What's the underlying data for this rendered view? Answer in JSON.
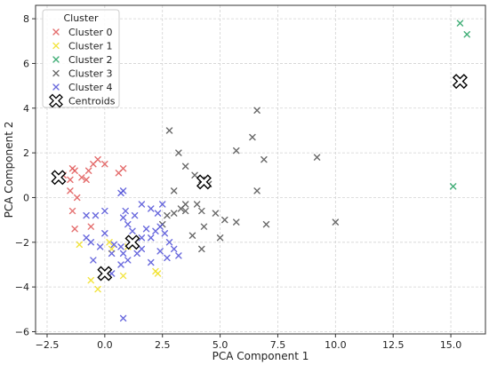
{
  "chart_data": {
    "type": "scatter",
    "xlabel": "PCA Component 1",
    "ylabel": "PCA Component 2",
    "xlim": [
      -3.0,
      16.5
    ],
    "ylim": [
      -6.1,
      8.6
    ],
    "x_ticks": [
      -2.5,
      0.0,
      2.5,
      5.0,
      7.5,
      10.0,
      12.5,
      15.0
    ],
    "x_tick_labels": [
      "−2.5",
      "0.0",
      "2.5",
      "5.0",
      "7.5",
      "10.0",
      "12.5",
      "15.0"
    ],
    "y_ticks": [
      -6,
      -4,
      -2,
      0,
      2,
      4,
      6,
      8
    ],
    "y_tick_labels": [
      "−6",
      "−4",
      "−2",
      "0",
      "2",
      "4",
      "6",
      "8"
    ],
    "grid": true,
    "legend": {
      "title": "Cluster",
      "placement": "top-left",
      "entries": [
        "Cluster 0",
        "Cluster 1",
        "Cluster 2",
        "Cluster 3",
        "Cluster 4",
        "Centroids"
      ]
    },
    "series": [
      {
        "name": "Cluster 0",
        "color": "#e05555",
        "marker": "x",
        "points": [
          [
            -2.0,
            0.8
          ],
          [
            -1.8,
            1.0
          ],
          [
            -1.5,
            0.8
          ],
          [
            -1.4,
            1.3
          ],
          [
            -1.3,
            1.2
          ],
          [
            -1.0,
            0.9
          ],
          [
            -0.7,
            1.2
          ],
          [
            -0.5,
            1.5
          ],
          [
            -0.3,
            1.7
          ],
          [
            0.0,
            1.5
          ],
          [
            0.6,
            1.1
          ],
          [
            0.8,
            1.3
          ],
          [
            -0.8,
            0.8
          ],
          [
            -1.2,
            0.0
          ],
          [
            -1.4,
            -0.6
          ],
          [
            -1.3,
            -1.4
          ],
          [
            -0.6,
            -1.3
          ],
          [
            -1.5,
            0.3
          ]
        ]
      },
      {
        "name": "Cluster 1",
        "color": "#f0e020",
        "marker": "x",
        "points": [
          [
            -1.1,
            -2.1
          ],
          [
            -0.6,
            -3.7
          ],
          [
            -0.3,
            -4.1
          ],
          [
            0.2,
            -2.0
          ],
          [
            0.8,
            -3.5
          ],
          [
            2.2,
            -3.3
          ],
          [
            2.3,
            -3.4
          ],
          [
            0.3,
            -2.3
          ],
          [
            1.0,
            -2.2
          ]
        ]
      },
      {
        "name": "Cluster 2",
        "color": "#20a060",
        "marker": "x",
        "points": [
          [
            15.4,
            7.8
          ],
          [
            15.7,
            7.3
          ],
          [
            15.1,
            0.5
          ]
        ]
      },
      {
        "name": "Cluster 3",
        "color": "#505050",
        "marker": "x",
        "points": [
          [
            2.8,
            3.0
          ],
          [
            3.5,
            1.4
          ],
          [
            3.2,
            2.0
          ],
          [
            3.9,
            1.0
          ],
          [
            4.2,
            0.8
          ],
          [
            4.5,
            0.6
          ],
          [
            4.0,
            -0.3
          ],
          [
            4.2,
            -0.6
          ],
          [
            4.3,
            -1.3
          ],
          [
            4.2,
            -2.3
          ],
          [
            4.8,
            -0.7
          ],
          [
            5.0,
            -1.8
          ],
          [
            5.2,
            -1.0
          ],
          [
            5.7,
            -1.1
          ],
          [
            5.7,
            2.1
          ],
          [
            6.4,
            2.7
          ],
          [
            6.6,
            3.9
          ],
          [
            6.6,
            0.3
          ],
          [
            6.9,
            1.7
          ],
          [
            7.0,
            -1.2
          ],
          [
            9.2,
            1.8
          ],
          [
            10.0,
            -1.1
          ],
          [
            3.0,
            0.3
          ],
          [
            3.3,
            -0.5
          ],
          [
            3.5,
            -0.3
          ],
          [
            2.7,
            -0.8
          ],
          [
            2.5,
            -1.2
          ],
          [
            3.8,
            -1.7
          ],
          [
            3.0,
            -0.7
          ],
          [
            3.5,
            -0.6
          ]
        ]
      },
      {
        "name": "Cluster 4",
        "color": "#5050d8",
        "marker": "x",
        "points": [
          [
            -0.8,
            -0.8
          ],
          [
            -0.4,
            -0.8
          ],
          [
            0.0,
            -0.6
          ],
          [
            -0.8,
            -1.8
          ],
          [
            -0.6,
            -2.0
          ],
          [
            -0.2,
            -2.2
          ],
          [
            0.0,
            -1.6
          ],
          [
            0.4,
            -2.1
          ],
          [
            0.3,
            -2.5
          ],
          [
            0.7,
            -2.2
          ],
          [
            0.8,
            -2.5
          ],
          [
            1.0,
            -2.8
          ],
          [
            1.4,
            -2.5
          ],
          [
            1.2,
            -2.0
          ],
          [
            1.6,
            -1.8
          ],
          [
            1.8,
            -1.4
          ],
          [
            2.0,
            -1.8
          ],
          [
            2.2,
            -1.5
          ],
          [
            2.4,
            -1.3
          ],
          [
            2.6,
            -1.6
          ],
          [
            2.8,
            -2.0
          ],
          [
            3.0,
            -2.3
          ],
          [
            3.2,
            -2.6
          ],
          [
            2.7,
            -2.7
          ],
          [
            2.4,
            -2.4
          ],
          [
            2.0,
            -2.9
          ],
          [
            1.6,
            -2.3
          ],
          [
            1.2,
            -1.5
          ],
          [
            1.0,
            -1.2
          ],
          [
            0.8,
            -0.9
          ],
          [
            0.7,
            0.2
          ],
          [
            0.9,
            -0.6
          ],
          [
            1.3,
            -0.8
          ],
          [
            1.6,
            -0.3
          ],
          [
            2.0,
            -0.5
          ],
          [
            2.3,
            -0.7
          ],
          [
            0.7,
            -3.0
          ],
          [
            0.3,
            -3.4
          ],
          [
            -0.5,
            -2.8
          ],
          [
            0.8,
            -5.4
          ],
          [
            0.8,
            0.3
          ],
          [
            2.5,
            -0.3
          ]
        ]
      }
    ],
    "centroids": {
      "name": "Centroids",
      "marker": "X",
      "points": [
        [
          -2.0,
          0.9
        ],
        [
          0.0,
          -3.4
        ],
        [
          1.2,
          -2.0
        ],
        [
          4.3,
          0.7
        ],
        [
          15.4,
          5.2
        ]
      ]
    }
  }
}
